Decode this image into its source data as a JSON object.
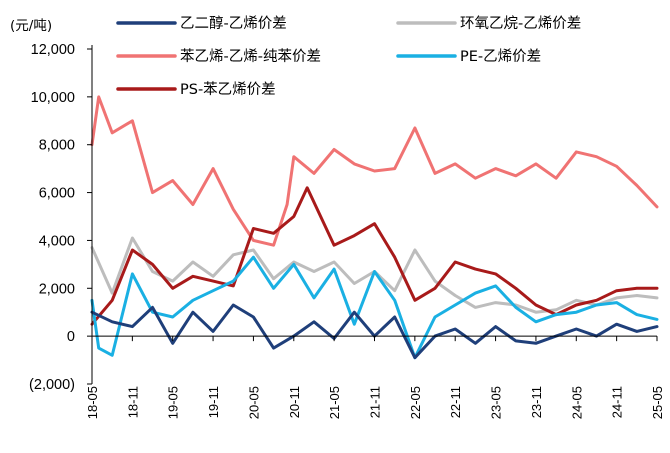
{
  "chart_data": {
    "type": "line",
    "y_unit": "(元/吨)",
    "ylim": [
      -2000,
      12000
    ],
    "y_ticks": [
      {
        "value": 12000,
        "label": "12,000"
      },
      {
        "value": 10000,
        "label": "10,000"
      },
      {
        "value": 8000,
        "label": "8,000"
      },
      {
        "value": 6000,
        "label": "6,000"
      },
      {
        "value": 4000,
        "label": "4,000"
      },
      {
        "value": 2000,
        "label": "2,000"
      },
      {
        "value": 0,
        "label": "0"
      },
      {
        "value": -2000,
        "label": "(2,000)"
      }
    ],
    "x_tick_labels": [
      "18-05",
      "18-11",
      "19-05",
      "19-11",
      "20-05",
      "20-11",
      "21-05",
      "21-11",
      "22-05",
      "22-11",
      "23-05",
      "23-11",
      "24-05",
      "24-11",
      "25-05"
    ],
    "x_range": [
      "2018-05",
      "2025-05"
    ],
    "grid": false,
    "legend_placement": "top",
    "series": [
      {
        "name": "乙二醇-乙烯价差",
        "color": "#1f3f7a",
        "x": [
          "2018-05",
          "2018-08",
          "2018-11",
          "2019-02",
          "2019-05",
          "2019-08",
          "2019-11",
          "2020-02",
          "2020-05",
          "2020-08",
          "2020-11",
          "2021-02",
          "2021-05",
          "2021-08",
          "2021-11",
          "2022-02",
          "2022-05",
          "2022-08",
          "2022-11",
          "2023-02",
          "2023-05",
          "2023-08",
          "2023-11",
          "2024-02",
          "2024-05",
          "2024-08",
          "2024-11",
          "2025-02",
          "2025-05"
        ],
        "values": [
          1000,
          600,
          400,
          1200,
          -300,
          1000,
          200,
          1300,
          800,
          -500,
          0,
          600,
          -100,
          1000,
          0,
          800,
          -900,
          0,
          300,
          -300,
          400,
          -200,
          -300,
          0,
          300,
          0,
          500,
          200,
          400
        ]
      },
      {
        "name": "环氧乙烷-乙烯价差",
        "color": "#bdbdbd",
        "x": [
          "2018-05",
          "2018-08",
          "2018-11",
          "2019-02",
          "2019-05",
          "2019-08",
          "2019-11",
          "2020-02",
          "2020-05",
          "2020-08",
          "2020-11",
          "2021-02",
          "2021-05",
          "2021-08",
          "2021-11",
          "2022-02",
          "2022-05",
          "2022-08",
          "2022-11",
          "2023-02",
          "2023-05",
          "2023-08",
          "2023-11",
          "2024-02",
          "2024-05",
          "2024-08",
          "2024-11",
          "2025-02",
          "2025-05"
        ],
        "values": [
          3700,
          1800,
          4100,
          2700,
          2300,
          3100,
          2500,
          3400,
          3600,
          2400,
          3100,
          2700,
          3100,
          2200,
          2700,
          1900,
          3600,
          2300,
          1700,
          1200,
          1400,
          1300,
          1000,
          1100,
          1500,
          1300,
          1600,
          1700,
          1600
        ]
      },
      {
        "name": "苯乙烯-乙烯-纯苯价差",
        "color": "#f07373",
        "x": [
          "2018-05",
          "2018-06",
          "2018-08",
          "2018-11",
          "2019-02",
          "2019-05",
          "2019-08",
          "2019-11",
          "2020-02",
          "2020-05",
          "2020-08",
          "2020-10",
          "2020-11",
          "2021-02",
          "2021-05",
          "2021-08",
          "2021-11",
          "2022-02",
          "2022-05",
          "2022-08",
          "2022-11",
          "2023-02",
          "2023-05",
          "2023-08",
          "2023-11",
          "2024-02",
          "2024-05",
          "2024-08",
          "2024-11",
          "2025-02",
          "2025-05"
        ],
        "values": [
          8000,
          10000,
          8500,
          9000,
          6000,
          6500,
          5500,
          7000,
          5300,
          4000,
          3800,
          5500,
          7500,
          6800,
          7800,
          7200,
          6900,
          7000,
          8700,
          6800,
          7200,
          6600,
          7000,
          6700,
          7200,
          6600,
          7700,
          7500,
          7100,
          6300,
          5400
        ]
      },
      {
        "name": "PE-乙烯价差",
        "color": "#1ab0e3",
        "x": [
          "2018-05",
          "2018-06",
          "2018-08",
          "2018-11",
          "2019-02",
          "2019-05",
          "2019-08",
          "2019-11",
          "2020-02",
          "2020-05",
          "2020-08",
          "2020-11",
          "2021-02",
          "2021-05",
          "2021-08",
          "2021-11",
          "2022-02",
          "2022-05",
          "2022-08",
          "2022-11",
          "2023-02",
          "2023-05",
          "2023-08",
          "2023-11",
          "2024-02",
          "2024-05",
          "2024-08",
          "2024-11",
          "2025-02",
          "2025-05"
        ],
        "values": [
          1500,
          -500,
          -800,
          2600,
          1000,
          800,
          1500,
          1900,
          2300,
          3300,
          2000,
          3000,
          1600,
          2800,
          500,
          2700,
          1500,
          -900,
          800,
          1300,
          1800,
          2100,
          1200,
          600,
          900,
          1000,
          1300,
          1400,
          900,
          700
        ]
      },
      {
        "name": "PS-苯乙烯价差",
        "color": "#a81a1a",
        "x": [
          "2018-05",
          "2018-08",
          "2018-11",
          "2019-02",
          "2019-05",
          "2019-08",
          "2019-11",
          "2020-02",
          "2020-05",
          "2020-08",
          "2020-11",
          "2021-01",
          "2021-05",
          "2021-08",
          "2021-11",
          "2022-02",
          "2022-05",
          "2022-08",
          "2022-11",
          "2023-02",
          "2023-05",
          "2023-08",
          "2023-11",
          "2024-02",
          "2024-05",
          "2024-08",
          "2024-11",
          "2025-02",
          "2025-05"
        ],
        "values": [
          500,
          1500,
          3600,
          3000,
          2000,
          2500,
          2300,
          2100,
          4500,
          4300,
          5000,
          6200,
          3800,
          4200,
          4700,
          3300,
          1500,
          2000,
          3100,
          2800,
          2600,
          2000,
          1300,
          900,
          1300,
          1500,
          1900,
          2000,
          2000
        ]
      }
    ]
  }
}
